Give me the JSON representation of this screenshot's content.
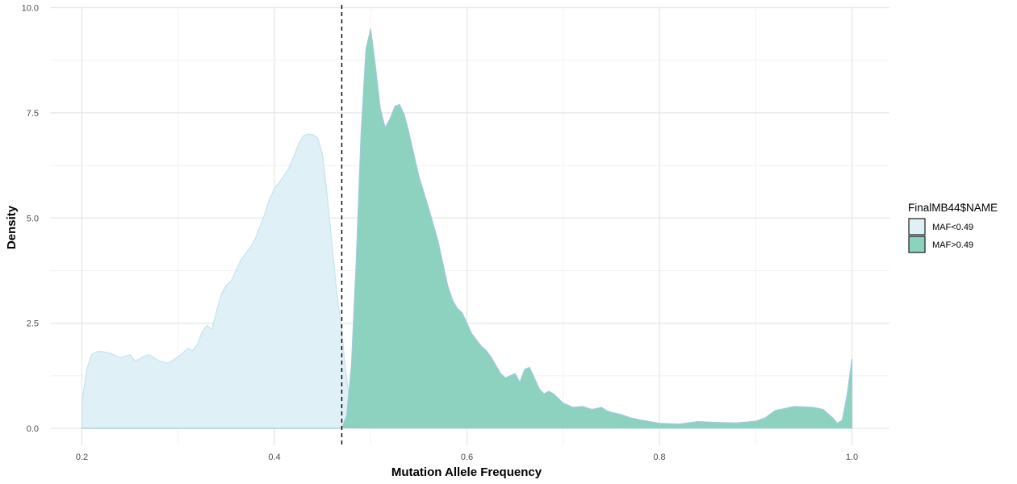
{
  "chart_data": {
    "type": "area",
    "xlabel": "Mutation Allele Frequency",
    "ylabel": "Density",
    "xlim": [
      0.2,
      1.0
    ],
    "ylim": [
      0,
      10
    ],
    "xticks": [
      "0.2",
      "0.4",
      "0.6",
      "0.8",
      "1.0"
    ],
    "yticks": [
      "0.0",
      "2.5",
      "5.0",
      "7.5",
      "10.0"
    ],
    "xtick_values": [
      0.2,
      0.4,
      0.6,
      0.8,
      1.0
    ],
    "ytick_values": [
      0,
      2.5,
      5,
      7.5,
      10
    ],
    "grid": true,
    "vline": {
      "x": 0.47,
      "style": "dashed",
      "color": "#000000"
    },
    "legend": {
      "title": "FinalMB44$NAME",
      "placement": "right",
      "entries": [
        "MAF<0.49",
        "MAF>0.49"
      ]
    },
    "series": [
      {
        "name": "MAF<0.49",
        "fill": "#dff0f6",
        "stroke": "#c6e3ef",
        "x": [
          0.2,
          0.205,
          0.21,
          0.215,
          0.22,
          0.23,
          0.24,
          0.25,
          0.255,
          0.26,
          0.265,
          0.27,
          0.275,
          0.28,
          0.29,
          0.3,
          0.31,
          0.315,
          0.32,
          0.325,
          0.33,
          0.335,
          0.34,
          0.345,
          0.35,
          0.355,
          0.36,
          0.365,
          0.37,
          0.375,
          0.38,
          0.385,
          0.39,
          0.395,
          0.4,
          0.405,
          0.41,
          0.415,
          0.42,
          0.425,
          0.43,
          0.435,
          0.44,
          0.445,
          0.45,
          0.455,
          0.46,
          0.465,
          0.47,
          0.473,
          0.476,
          0.479,
          0.482,
          0.485,
          0.488,
          0.49
        ],
        "y": [
          0.6,
          1.4,
          1.75,
          1.82,
          1.83,
          1.78,
          1.68,
          1.75,
          1.6,
          1.65,
          1.72,
          1.75,
          1.68,
          1.6,
          1.55,
          1.7,
          1.9,
          1.85,
          2.0,
          2.3,
          2.45,
          2.35,
          2.8,
          3.2,
          3.4,
          3.5,
          3.75,
          4.0,
          4.15,
          4.3,
          4.5,
          4.8,
          5.1,
          5.45,
          5.7,
          5.85,
          6.0,
          6.2,
          6.45,
          6.75,
          6.95,
          7.0,
          6.98,
          6.9,
          6.5,
          5.5,
          4.3,
          3.2,
          2.3,
          1.6,
          1.0,
          0.55,
          0.25,
          0.1,
          0.03,
          0.0
        ]
      },
      {
        "name": "MAF>0.49",
        "fill": "#8dd1bf",
        "stroke": "#a2c9e0",
        "x": [
          0.47,
          0.475,
          0.48,
          0.485,
          0.49,
          0.495,
          0.5,
          0.505,
          0.51,
          0.515,
          0.52,
          0.525,
          0.53,
          0.535,
          0.54,
          0.545,
          0.55,
          0.56,
          0.57,
          0.58,
          0.585,
          0.59,
          0.595,
          0.6,
          0.605,
          0.61,
          0.615,
          0.62,
          0.625,
          0.63,
          0.635,
          0.64,
          0.645,
          0.65,
          0.655,
          0.66,
          0.665,
          0.67,
          0.675,
          0.68,
          0.685,
          0.69,
          0.7,
          0.71,
          0.72,
          0.73,
          0.74,
          0.745,
          0.75,
          0.76,
          0.77,
          0.78,
          0.8,
          0.82,
          0.84,
          0.86,
          0.88,
          0.9,
          0.91,
          0.92,
          0.94,
          0.96,
          0.97,
          0.98,
          0.985,
          0.99,
          0.995,
          1.0
        ],
        "y": [
          0.0,
          0.3,
          1.5,
          4.0,
          7.0,
          9.0,
          9.5,
          8.6,
          7.6,
          7.15,
          7.35,
          7.65,
          7.7,
          7.45,
          7.0,
          6.5,
          6.0,
          5.25,
          4.45,
          3.4,
          3.05,
          2.85,
          2.75,
          2.5,
          2.25,
          2.1,
          1.95,
          1.85,
          1.7,
          1.5,
          1.3,
          1.2,
          1.25,
          1.3,
          1.1,
          1.4,
          1.45,
          1.2,
          0.95,
          0.82,
          0.88,
          0.82,
          0.6,
          0.5,
          0.52,
          0.45,
          0.5,
          0.42,
          0.38,
          0.33,
          0.25,
          0.2,
          0.12,
          0.1,
          0.16,
          0.14,
          0.13,
          0.17,
          0.25,
          0.42,
          0.52,
          0.5,
          0.45,
          0.25,
          0.12,
          0.2,
          0.8,
          1.65
        ]
      }
    ]
  }
}
